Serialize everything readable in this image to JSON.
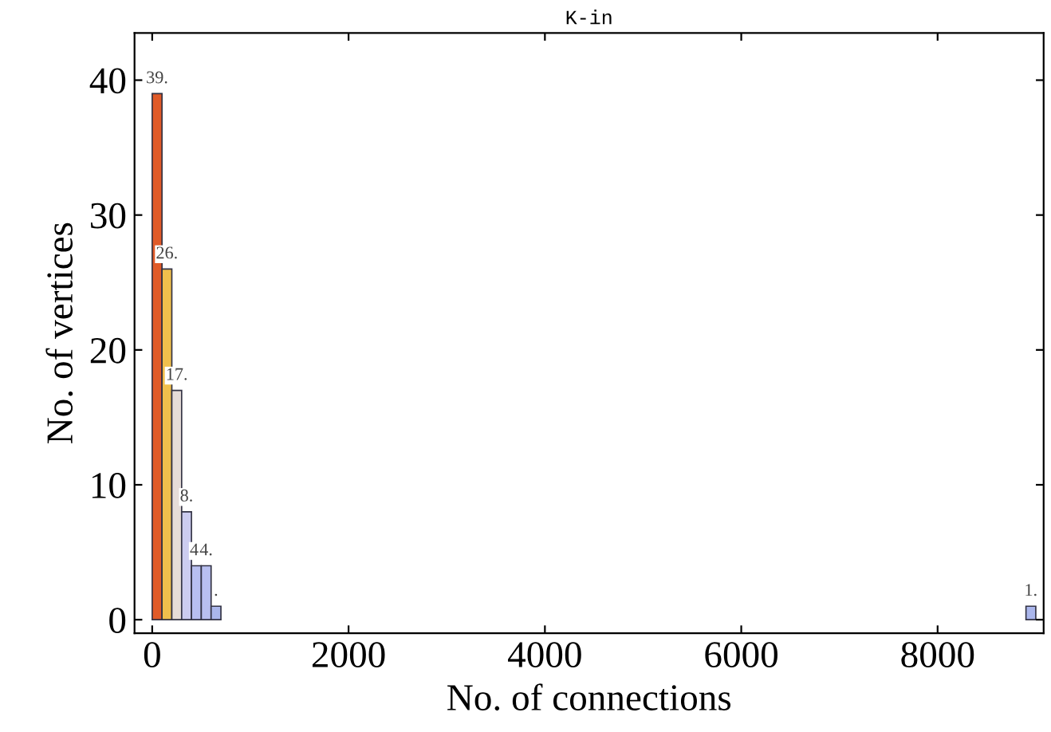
{
  "chart_data": {
    "type": "histogram",
    "title": "K-in",
    "xlabel": "No. of connections",
    "ylabel": "No. of vertices",
    "bins": [
      0,
      100,
      200,
      300,
      400,
      500,
      600,
      700,
      8900,
      9000
    ],
    "values": [
      39,
      26,
      17,
      8,
      4,
      4,
      1,
      0,
      1
    ],
    "colors": [
      "#e05a28",
      "#f0bf4c",
      "#e6dcd8",
      "#ccccf0",
      "#b8bff0",
      "#b8bff0",
      "#aab6ec",
      "#aab6ec",
      "#aab6ec"
    ],
    "value_labels": [
      "39.",
      "26.",
      "17.",
      "8.",
      "4.",
      "4.",
      ".",
      null,
      "1."
    ],
    "xlim": [
      -180,
      9080
    ],
    "ylim": [
      -1,
      43.5
    ],
    "xticks": [
      0,
      2000,
      4000,
      6000,
      8000
    ],
    "yticks": [
      0,
      10,
      20,
      30,
      40
    ],
    "grid": false,
    "legend": false
  }
}
